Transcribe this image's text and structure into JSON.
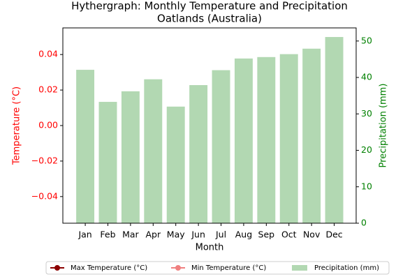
{
  "chart_data": {
    "type": "bar",
    "title": "Hythergraph: Monthly Temperature and Precipitation",
    "subtitle": "Oatlands (Australia)",
    "xlabel": "Month",
    "ylabel": "Temperature (°C)",
    "y2label": "Precipitation (mm)",
    "categories": [
      "Jan",
      "Feb",
      "Mar",
      "Apr",
      "May",
      "Jun",
      "Jul",
      "Aug",
      "Sep",
      "Oct",
      "Nov",
      "Dec"
    ],
    "ylim": [
      -0.055,
      0.055
    ],
    "yticks": [
      {
        "value": -0.04,
        "label": "−0.04"
      },
      {
        "value": -0.02,
        "label": "−0.02"
      },
      {
        "value": 0,
        "label": "0.00"
      },
      0.02,
      0.04
    ],
    "y2lim": [
      0,
      53.6
    ],
    "y2ticks": [
      0,
      10,
      20,
      30,
      40,
      50
    ],
    "ycolor": "red",
    "y2color": "green",
    "legend": "lower center",
    "series": [
      {
        "name": "Max Temperature (°C)",
        "type": "line",
        "color": "#8b0000",
        "axis": "y",
        "values": [
          null,
          null,
          null,
          null,
          null,
          null,
          null,
          null,
          null,
          null,
          null,
          null
        ]
      },
      {
        "name": "Min Temperature (°C)",
        "type": "line",
        "color": "#f08080",
        "axis": "y",
        "values": [
          null,
          null,
          null,
          null,
          null,
          null,
          null,
          null,
          null,
          null,
          null,
          null
        ]
      },
      {
        "name": "Precipitation (mm)",
        "type": "bar",
        "color": "#b2d8b2",
        "axis": "y2",
        "values": [
          42.1,
          33.3,
          36.2,
          39.5,
          32.0,
          37.9,
          42.0,
          45.2,
          45.6,
          46.4,
          47.9,
          51.1
        ]
      }
    ]
  }
}
